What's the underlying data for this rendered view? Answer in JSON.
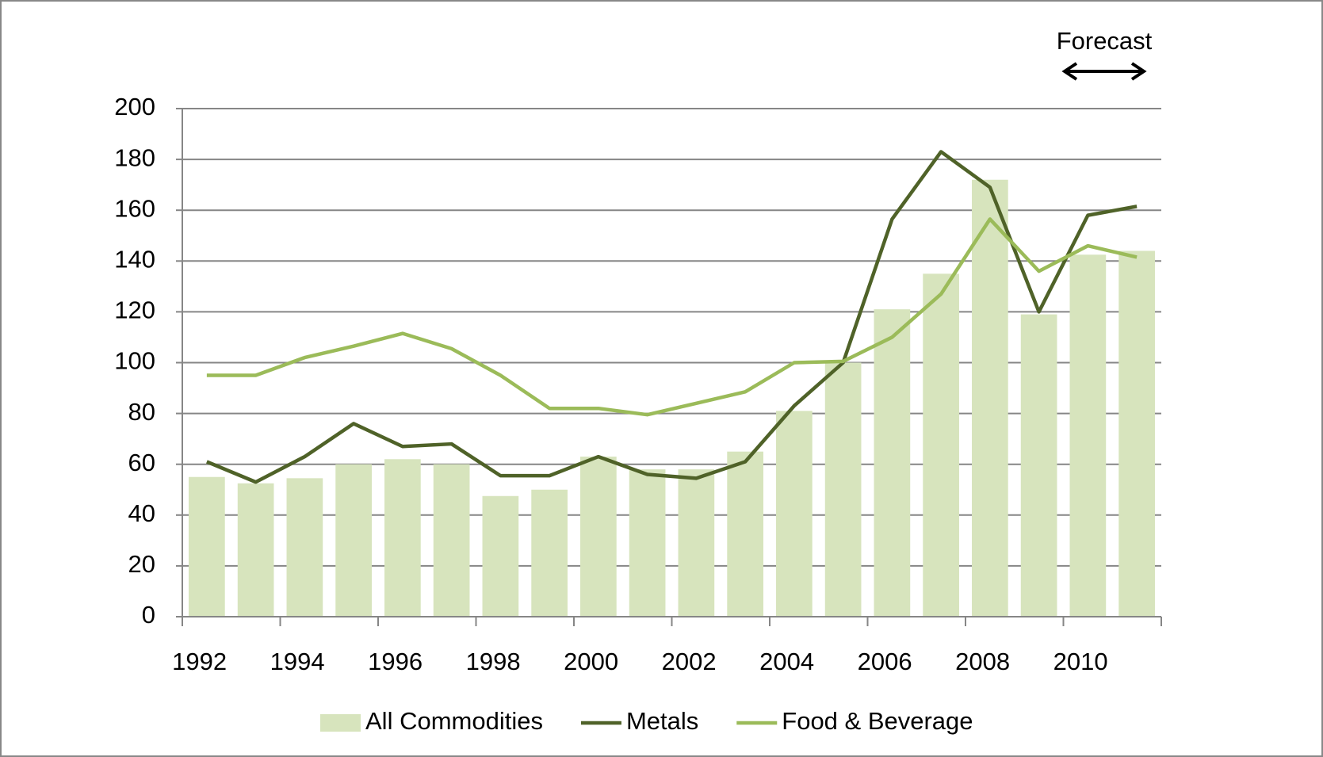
{
  "chart_data": {
    "type": "bar",
    "annotation": "Forecast",
    "categories": [
      "1992",
      null,
      "1994",
      null,
      "1996",
      null,
      "1998",
      null,
      "2000",
      null,
      "2002",
      null,
      "2004",
      null,
      "2006",
      null,
      "2008",
      null,
      "2010",
      null
    ],
    "series": [
      {
        "name": "All Commodities",
        "type": "bar",
        "color": "#d7e4bd",
        "values": [
          55,
          52.5,
          54.5,
          60,
          62,
          60,
          47.5,
          50,
          63,
          58,
          58,
          65,
          81,
          100,
          121,
          135,
          172,
          119,
          142.5,
          144
        ]
      },
      {
        "name": "Metals",
        "type": "line",
        "color": "#4f6228",
        "values": [
          61,
          53,
          63,
          76,
          67,
          68,
          55.5,
          55.5,
          63,
          56,
          54.5,
          61,
          83,
          100,
          156.5,
          183,
          169,
          120,
          158,
          161.5
        ]
      },
      {
        "name": "Food & Beverage",
        "type": "line",
        "color": "#9bbb59",
        "values": [
          95,
          95,
          102,
          106.5,
          111.5,
          105.5,
          95,
          82,
          82,
          79.5,
          84,
          88.5,
          100,
          100.5,
          110,
          127,
          156.5,
          136,
          146,
          141.5
        ]
      }
    ],
    "ylim": [
      0,
      200
    ],
    "yticks": [
      0,
      20,
      40,
      60,
      80,
      100,
      120,
      140,
      160,
      180,
      200
    ],
    "grid": true
  }
}
